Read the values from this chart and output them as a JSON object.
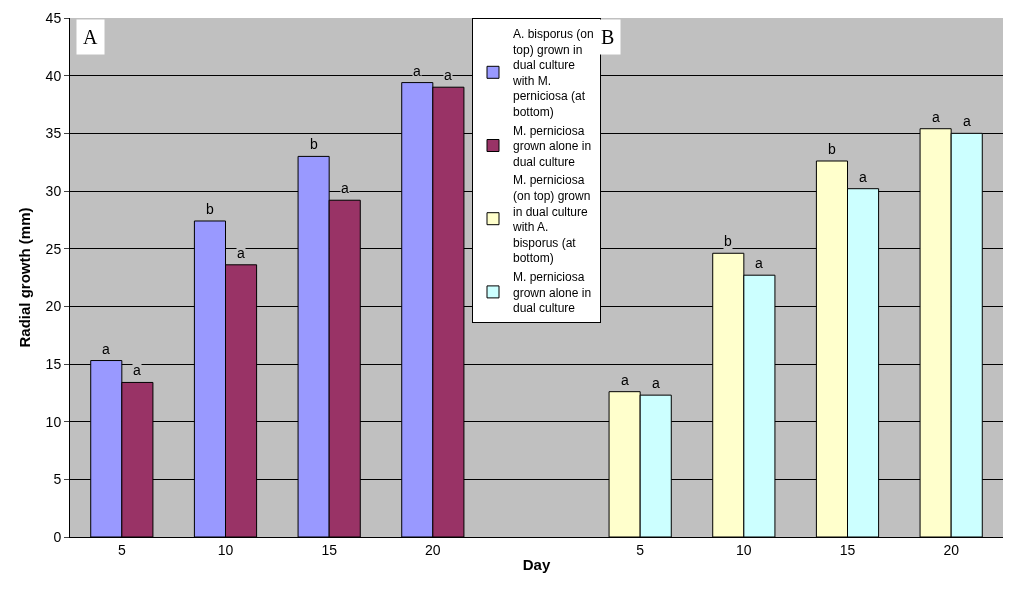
{
  "chart_data": {
    "type": "bar",
    "xlabel": "Day",
    "ylabel": "Radial growth (mm)",
    "categories": [
      "5",
      "10",
      "15",
      "20",
      null,
      "5",
      "10",
      "15",
      "20"
    ],
    "series": [
      {
        "name": "A. bisporus (on top) grown in dual culture with M. perniciosa (at bottom)",
        "color": "#9999ff",
        "values": [
          15.3,
          27.4,
          33.0,
          39.4,
          null,
          null,
          null,
          null,
          null
        ],
        "value_labels": [
          "a",
          "b",
          "b",
          "a",
          null,
          null,
          null,
          null,
          null
        ]
      },
      {
        "name": "M. perniciosa grown alone in dual culture",
        "color": "#993366",
        "values": [
          13.4,
          23.6,
          29.2,
          39.0,
          null,
          null,
          null,
          null,
          null
        ],
        "value_labels": [
          "a",
          "a",
          "a",
          "a",
          null,
          null,
          null,
          null,
          null
        ]
      },
      {
        "name": "M. perniciosa (on top) grown in dual culture with A. bisporus (at bottom)",
        "color": "#ffffcc",
        "values": [
          null,
          null,
          null,
          null,
          null,
          12.6,
          24.6,
          32.6,
          35.4
        ],
        "value_labels": [
          null,
          null,
          null,
          null,
          null,
          "a",
          "b",
          "b",
          "a"
        ]
      },
      {
        "name": "M. perniciosa grown alone in dual culture",
        "color": "#ccffff",
        "values": [
          null,
          null,
          null,
          null,
          null,
          12.3,
          22.7,
          30.2,
          35.0
        ],
        "value_labels": [
          null,
          null,
          null,
          null,
          null,
          "a",
          "a",
          "a",
          "a"
        ]
      }
    ],
    "annotations": [
      "A",
      "B"
    ],
    "ylim": [
      0,
      45
    ],
    "yticks": [
      0,
      5,
      10,
      15,
      20,
      25,
      30,
      35,
      40,
      45
    ],
    "grid": "y",
    "legend": "top"
  }
}
